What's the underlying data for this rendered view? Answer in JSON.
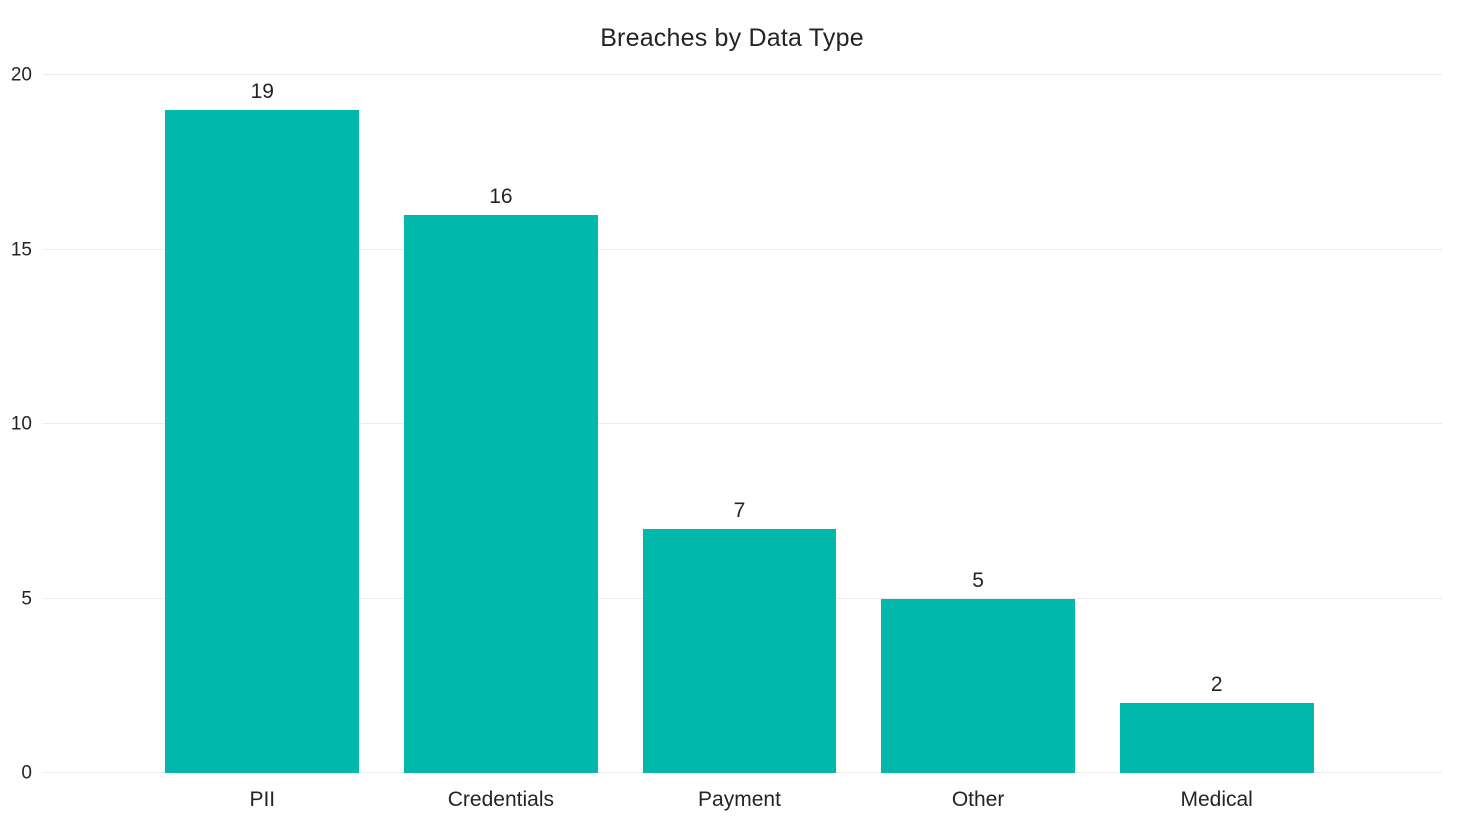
{
  "title": "Breaches by Data Type",
  "colors": {
    "bar": "#01B8AA",
    "text": "#252423",
    "gridline": "#EBEBEB",
    "background": "#FFFFFF"
  },
  "chart_data": {
    "type": "bar",
    "title": "Breaches by Data Type",
    "categories": [
      "PII",
      "Credentials",
      "Payment",
      "Other",
      "Medical"
    ],
    "values": [
      19,
      16,
      7,
      5,
      2
    ],
    "data_labels": [
      "19",
      "16",
      "7",
      "5",
      "2"
    ],
    "xlabel": "",
    "ylabel": "",
    "ylim": [
      0,
      20
    ],
    "yticks": [
      0,
      5,
      10,
      15,
      20
    ],
    "grid": "horizontal",
    "legend": "none",
    "bar_color": "#01B8AA"
  }
}
